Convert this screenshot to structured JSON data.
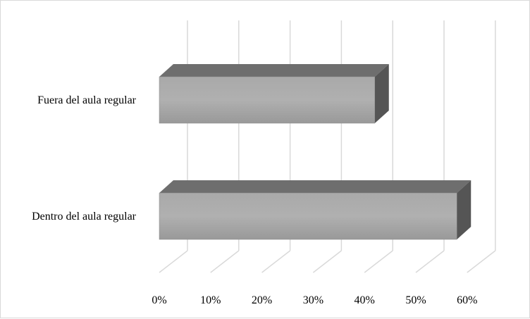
{
  "chart_data": {
    "type": "bar",
    "orientation": "horizontal",
    "style": "3d",
    "categories": [
      "Fuera del aula regular",
      "Dentro del aula regular"
    ],
    "values": [
      0.42,
      0.58
    ],
    "xlim": [
      0,
      0.6
    ],
    "x_ticks": [
      "0%",
      "10%",
      "20%",
      "30%",
      "40%",
      "50%",
      "60%"
    ],
    "grid": true,
    "legend": "none",
    "title": "",
    "xlabel": "",
    "ylabel": "",
    "colors": {
      "bar_front": "#a6a6a6",
      "bar_top": "#6e6e6e",
      "bar_side": "#555555",
      "gridline": "#d9d9d9"
    }
  }
}
